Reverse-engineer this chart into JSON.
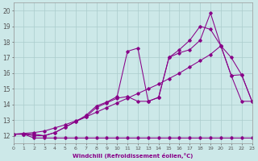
{
  "title": "",
  "xlabel": "Windchill (Refroidissement éolien,°C)",
  "bg_color": "#cce8e8",
  "line_color": "#880088",
  "grid_color": "#aacccc",
  "xlim": [
    0,
    23
  ],
  "ylim": [
    11.5,
    20.5
  ],
  "xticks": [
    0,
    1,
    2,
    3,
    4,
    5,
    6,
    7,
    8,
    9,
    10,
    11,
    12,
    13,
    14,
    15,
    16,
    17,
    18,
    19,
    20,
    21,
    22,
    23
  ],
  "yticks": [
    12,
    13,
    14,
    15,
    16,
    17,
    18,
    19,
    20
  ],
  "series": [
    {
      "x": [
        0,
        1,
        2,
        3,
        4,
        5,
        6,
        7,
        8,
        9,
        10,
        11,
        12,
        13,
        14,
        15,
        16,
        17,
        18,
        19,
        20,
        21,
        22,
        23
      ],
      "y": [
        12.1,
        12.1,
        12.1,
        12.0,
        12.2,
        12.55,
        12.9,
        13.3,
        13.9,
        14.15,
        14.5,
        17.4,
        17.6,
        14.2,
        14.45,
        17.0,
        17.3,
        17.5,
        18.1,
        19.85,
        17.75,
        15.85,
        15.9,
        14.2
      ]
    },
    {
      "x": [
        0,
        1,
        2,
        3,
        4,
        5,
        6,
        7,
        8,
        9,
        10,
        11,
        12,
        13,
        14,
        15,
        16,
        17,
        18,
        19,
        20,
        21,
        22,
        23
      ],
      "y": [
        12.1,
        12.1,
        12.0,
        12.0,
        12.2,
        12.55,
        12.9,
        13.2,
        13.8,
        14.1,
        14.4,
        14.5,
        14.2,
        14.2,
        14.45,
        17.0,
        17.5,
        18.1,
        19.0,
        18.8,
        17.75,
        15.85,
        14.2,
        14.2
      ]
    },
    {
      "x": [
        0,
        1,
        2,
        3,
        4,
        5,
        6,
        7,
        8,
        9,
        10,
        11,
        12,
        13,
        14,
        15,
        16,
        17,
        18,
        19,
        20,
        21,
        22,
        23
      ],
      "y": [
        12.1,
        12.15,
        12.2,
        12.3,
        12.5,
        12.7,
        12.95,
        13.2,
        13.5,
        13.8,
        14.1,
        14.4,
        14.7,
        15.0,
        15.3,
        15.65,
        16.0,
        16.4,
        16.8,
        17.2,
        17.75,
        17.0,
        15.9,
        14.2
      ]
    },
    {
      "x": [
        0,
        1,
        2,
        3,
        4,
        5,
        6,
        7,
        8,
        9,
        10,
        11,
        12,
        13,
        14,
        15,
        16,
        17,
        18,
        19,
        20,
        21,
        22,
        23
      ],
      "y": [
        12.1,
        12.1,
        11.85,
        11.85,
        11.85,
        11.85,
        11.85,
        11.85,
        11.85,
        11.85,
        11.85,
        11.85,
        11.85,
        11.85,
        11.85,
        11.85,
        11.85,
        11.85,
        11.85,
        11.85,
        11.85,
        11.85,
        11.85,
        11.85
      ]
    }
  ]
}
